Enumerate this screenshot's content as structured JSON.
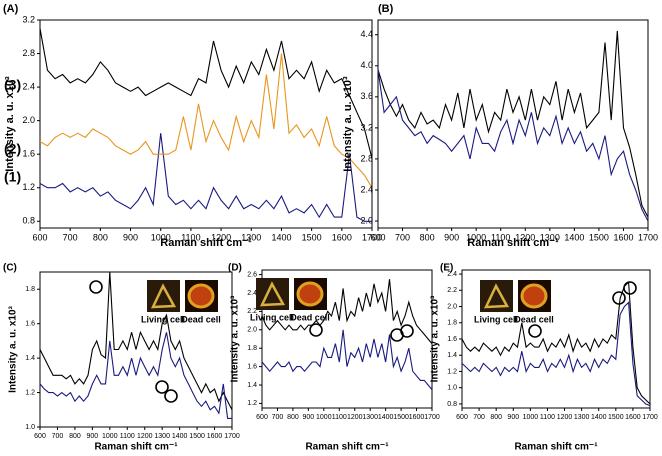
{
  "chart_data": [
    {
      "type": "line",
      "label": "(A)",
      "xlabel": "Raman shift cm⁻¹",
      "ylabel": "Intensity a. u. x10³",
      "x": [
        600,
        625,
        650,
        675,
        700,
        725,
        750,
        775,
        800,
        825,
        850,
        875,
        900,
        925,
        950,
        975,
        1000,
        1025,
        1050,
        1075,
        1100,
        1125,
        1150,
        1175,
        1200,
        1225,
        1250,
        1275,
        1300,
        1325,
        1350,
        1375,
        1400,
        1425,
        1450,
        1475,
        1500,
        1525,
        1550,
        1575,
        1600,
        1625,
        1650,
        1675,
        1700
      ],
      "xlim": [
        600,
        1700
      ],
      "xticks": [
        600,
        700,
        800,
        900,
        1000,
        1100,
        1200,
        1300,
        1400,
        1500,
        1600,
        1700
      ],
      "ylim": [
        0.72,
        3.2
      ],
      "yticks": [
        0.8,
        1.2,
        1.6,
        {
          "value": 2,
          "label": "2.0"
        },
        2.4,
        2.8,
        3.2
      ],
      "series": [
        {
          "name": "(1)",
          "color": "#1a1a80",
          "values": [
            1.25,
            1.2,
            1.2,
            1.25,
            1.15,
            1.2,
            1.15,
            1.2,
            1.1,
            1.15,
            1.05,
            1.0,
            0.95,
            1.05,
            1.2,
            1.0,
            1.85,
            1.1,
            1.0,
            1.05,
            0.95,
            1.05,
            0.95,
            1.2,
            1.05,
            0.95,
            1.1,
            0.95,
            1.0,
            0.95,
            1.05,
            0.95,
            1.1,
            0.9,
            0.95,
            0.9,
            1.0,
            0.85,
            1.0,
            0.85,
            0.85,
            1.6,
            0.85,
            0.8,
            0.8
          ]
        },
        {
          "name": "(2)",
          "color": "#e8961e",
          "values": [
            1.75,
            1.7,
            1.8,
            1.85,
            1.8,
            1.85,
            1.8,
            1.9,
            1.85,
            1.8,
            1.7,
            1.65,
            1.6,
            1.65,
            1.75,
            1.6,
            1.6,
            1.6,
            1.65,
            2.05,
            1.65,
            2.2,
            1.75,
            2.0,
            1.8,
            1.65,
            2.05,
            1.75,
            2.0,
            1.8,
            2.55,
            1.9,
            2.8,
            1.85,
            1.95,
            1.8,
            1.9,
            1.7,
            2.05,
            1.7,
            1.6,
            1.55,
            1.45,
            1.35,
            1.2
          ]
        },
        {
          "name": "(3)",
          "color": "#000000",
          "values": [
            3.1,
            2.6,
            2.5,
            2.55,
            2.45,
            2.5,
            2.45,
            2.55,
            2.7,
            2.6,
            2.45,
            2.4,
            2.35,
            2.4,
            2.3,
            2.35,
            2.4,
            2.45,
            2.4,
            2.35,
            2.3,
            2.5,
            2.45,
            2.95,
            2.6,
            2.4,
            2.65,
            2.45,
            2.7,
            2.55,
            2.85,
            2.6,
            2.95,
            2.5,
            2.6,
            2.5,
            2.7,
            2.35,
            2.6,
            2.45,
            2.5,
            2.3,
            2.1,
            1.9,
            1.55
          ]
        }
      ]
    },
    {
      "type": "line",
      "label": "(B)",
      "xlabel": "Raman shift cm⁻¹",
      "ylabel": "Intensity a. u. x10³",
      "x": [
        600,
        625,
        650,
        675,
        700,
        725,
        750,
        775,
        800,
        825,
        850,
        875,
        900,
        925,
        950,
        975,
        1000,
        1025,
        1050,
        1075,
        1100,
        1125,
        1150,
        1175,
        1200,
        1225,
        1250,
        1275,
        1300,
        1325,
        1350,
        1375,
        1400,
        1425,
        1450,
        1475,
        1500,
        1525,
        1550,
        1575,
        1600,
        1625,
        1650,
        1675,
        1700
      ],
      "xlim": [
        600,
        1700
      ],
      "xticks": [
        600,
        700,
        800,
        900,
        1000,
        1100,
        1200,
        1300,
        1400,
        1500,
        1600,
        1700
      ],
      "ylim": [
        1.91,
        4.59
      ],
      "yticks": [
        {
          "value": 2,
          "label": "2.0"
        },
        2.4,
        2.8,
        3.2,
        3.6,
        {
          "value": 4,
          "label": "4.0"
        },
        4.4
      ],
      "series": [
        {
          "color": "#000000",
          "values": [
            3.95,
            3.7,
            3.5,
            3.35,
            3.5,
            3.3,
            3.2,
            3.4,
            3.25,
            3.3,
            3.2,
            3.5,
            3.3,
            3.65,
            3.2,
            3.7,
            3.3,
            3.5,
            3.15,
            3.4,
            3.3,
            3.7,
            3.4,
            3.6,
            3.3,
            3.7,
            3.3,
            3.6,
            3.5,
            3.8,
            3.3,
            3.7,
            3.4,
            3.65,
            3.2,
            3.3,
            3.4,
            4.3,
            3.3,
            4.45,
            3.2,
            2.95,
            2.6,
            2.2,
            2.05
          ]
        },
        {
          "color": "#1a1a80",
          "values": [
            3.95,
            3.4,
            3.5,
            3.6,
            3.3,
            3.2,
            3.1,
            3.15,
            3.0,
            3.1,
            3.05,
            3.0,
            2.9,
            3.0,
            3.1,
            2.8,
            3.2,
            3.0,
            3.0,
            2.9,
            3.15,
            3.3,
            3.0,
            3.3,
            3.1,
            3.4,
            3.0,
            3.2,
            3.1,
            3.35,
            3.0,
            3.2,
            3.0,
            3.15,
            2.9,
            3.0,
            2.8,
            3.1,
            2.6,
            2.8,
            2.9,
            2.6,
            2.4,
            2.15,
            2.0
          ]
        }
      ]
    },
    {
      "type": "line",
      "label": "(C)",
      "xlabel": "Raman shift cm⁻¹",
      "ylabel": "Intensity a. u. x10³",
      "annotations": [
        "Living cell",
        "Dead cell"
      ],
      "x": [
        600,
        625,
        650,
        675,
        700,
        725,
        750,
        775,
        800,
        825,
        850,
        875,
        900,
        925,
        950,
        975,
        1000,
        1025,
        1050,
        1075,
        1100,
        1125,
        1150,
        1175,
        1200,
        1225,
        1250,
        1275,
        1300,
        1325,
        1350,
        1375,
        1400,
        1425,
        1450,
        1475,
        1500,
        1525,
        1550,
        1575,
        1600,
        1625,
        1650,
        1675,
        1700
      ],
      "xlim": [
        600,
        1700
      ],
      "xticks": [
        600,
        700,
        800,
        900,
        1000,
        1100,
        1200,
        1300,
        1400,
        1500,
        1600,
        1700
      ],
      "ylim": [
        1.0,
        1.9
      ],
      "yticks": [
        {
          "value": 1,
          "label": "1.0"
        },
        1.2,
        1.4,
        1.6,
        1.8
      ],
      "series": [
        {
          "color": "#000000",
          "values": [
            1.45,
            1.4,
            1.35,
            1.3,
            1.3,
            1.3,
            1.28,
            1.3,
            1.25,
            1.28,
            1.25,
            1.3,
            1.45,
            1.5,
            1.42,
            1.4,
            1.9,
            1.45,
            1.45,
            1.5,
            1.45,
            1.55,
            1.45,
            1.55,
            1.5,
            1.45,
            1.5,
            1.45,
            1.6,
            1.65,
            1.5,
            1.45,
            1.5,
            1.4,
            1.35,
            1.3,
            1.25,
            1.2,
            1.25,
            1.2,
            1.22,
            1.15,
            1.2,
            1.15,
            1.1
          ]
        },
        {
          "color": "#1a1a80",
          "values": [
            1.25,
            1.22,
            1.2,
            1.2,
            1.18,
            1.2,
            1.18,
            1.2,
            1.15,
            1.18,
            1.15,
            1.18,
            1.25,
            1.3,
            1.25,
            1.25,
            1.5,
            1.3,
            1.3,
            1.35,
            1.3,
            1.4,
            1.3,
            1.4,
            1.35,
            1.3,
            1.35,
            1.3,
            1.45,
            1.55,
            1.4,
            1.35,
            1.4,
            1.3,
            1.25,
            1.2,
            1.15,
            1.12,
            1.15,
            1.1,
            1.12,
            1.08,
            1.25,
            1.05,
            1.05
          ]
        }
      ]
    },
    {
      "type": "line",
      "label": "(D)",
      "xlabel": "Raman shift cm⁻¹",
      "ylabel": "Intensity a. u. x10³",
      "annotations": [
        "Living cell",
        "Dead cell"
      ],
      "x": [
        600,
        625,
        650,
        675,
        700,
        725,
        750,
        775,
        800,
        825,
        850,
        875,
        900,
        925,
        950,
        975,
        1000,
        1025,
        1050,
        1075,
        1100,
        1125,
        1150,
        1175,
        1200,
        1225,
        1250,
        1275,
        1300,
        1325,
        1350,
        1375,
        1400,
        1425,
        1450,
        1475,
        1500,
        1525,
        1550,
        1575,
        1600,
        1625,
        1650,
        1675,
        1700
      ],
      "xlim": [
        600,
        1700
      ],
      "xticks": [
        600,
        700,
        800,
        900,
        1000,
        1100,
        1200,
        1300,
        1400,
        1500,
        1600,
        1700
      ],
      "ylim": [
        1.15,
        2.65
      ],
      "yticks": [
        1.2,
        1.4,
        1.6,
        1.8,
        {
          "value": 2,
          "label": "2.0"
        },
        2.2,
        2.4,
        2.6
      ],
      "series": [
        {
          "color": "#000000",
          "values": [
            2.15,
            2.05,
            2.0,
            2.05,
            2.1,
            2.05,
            2.0,
            2.05,
            2.0,
            2.0,
            2.05,
            2.0,
            2.05,
            2.05,
            2.1,
            2.05,
            2.1,
            2.2,
            2.15,
            2.3,
            2.1,
            2.45,
            2.1,
            2.2,
            2.15,
            2.35,
            2.2,
            2.4,
            2.25,
            2.5,
            2.3,
            2.4,
            2.2,
            2.55,
            2.1,
            2.2,
            2.05,
            2.15,
            2.3,
            2.15,
            2.05,
            2.0,
            1.95,
            1.9,
            1.85
          ]
        },
        {
          "color": "#1a1a80",
          "values": [
            1.65,
            1.6,
            1.55,
            1.6,
            1.65,
            1.6,
            1.6,
            1.65,
            1.55,
            1.6,
            1.6,
            1.55,
            1.6,
            1.65,
            1.65,
            1.6,
            1.8,
            1.7,
            1.7,
            1.85,
            1.65,
            2.0,
            1.6,
            1.75,
            1.7,
            1.8,
            1.65,
            1.85,
            1.7,
            1.9,
            1.7,
            1.85,
            1.65,
            1.95,
            1.6,
            1.7,
            1.55,
            1.65,
            1.8,
            1.55,
            1.5,
            1.45,
            1.45,
            1.4,
            1.35
          ]
        }
      ]
    },
    {
      "type": "line",
      "label": "(E)",
      "xlabel": "Raman shift cm⁻¹",
      "ylabel": "Intensity a. u. x10³",
      "annotations": [
        "Living cell",
        "Dead cell"
      ],
      "x": [
        600,
        625,
        650,
        675,
        700,
        725,
        750,
        775,
        800,
        825,
        850,
        875,
        900,
        925,
        950,
        975,
        1000,
        1025,
        1050,
        1075,
        1100,
        1125,
        1150,
        1175,
        1200,
        1225,
        1250,
        1275,
        1300,
        1325,
        1350,
        1375,
        1400,
        1425,
        1450,
        1475,
        1500,
        1525,
        1550,
        1575,
        1600,
        1625,
        1650,
        1675,
        1700
      ],
      "xlim": [
        600,
        1700
      ],
      "xticks": [
        600,
        700,
        800,
        900,
        1000,
        1100,
        1200,
        1300,
        1400,
        1500,
        1600,
        1700
      ],
      "ylim": [
        0.75,
        2.45
      ],
      "yticks": [
        0.8,
        {
          "value": 1,
          "label": "1.0"
        },
        1.2,
        1.4,
        1.6,
        1.8,
        {
          "value": 2,
          "label": "2.0"
        },
        2.2,
        2.4
      ],
      "series": [
        {
          "color": "#000000",
          "values": [
            1.6,
            1.5,
            1.45,
            1.5,
            1.45,
            1.55,
            1.5,
            1.45,
            1.5,
            1.4,
            1.5,
            1.45,
            1.55,
            1.5,
            1.8,
            1.5,
            1.55,
            1.5,
            1.5,
            1.6,
            1.45,
            1.55,
            1.5,
            1.6,
            1.5,
            1.65,
            1.45,
            1.6,
            1.5,
            1.55,
            1.45,
            1.6,
            1.5,
            1.6,
            1.55,
            1.65,
            1.6,
            2.1,
            2.25,
            2.3,
            1.5,
            1.0,
            0.9,
            0.85,
            0.8
          ]
        },
        {
          "color": "#1a1a80",
          "values": [
            1.3,
            1.25,
            1.2,
            1.25,
            1.2,
            1.3,
            1.25,
            1.2,
            1.25,
            1.15,
            1.25,
            1.2,
            1.25,
            1.2,
            1.45,
            1.2,
            1.3,
            1.25,
            1.25,
            1.35,
            1.2,
            1.3,
            1.25,
            1.35,
            1.25,
            1.4,
            1.2,
            1.35,
            1.25,
            1.3,
            1.2,
            1.35,
            1.25,
            1.35,
            1.3,
            1.4,
            1.35,
            1.9,
            2.0,
            2.05,
            1.3,
            0.9,
            0.85,
            0.8,
            0.78
          ]
        }
      ]
    }
  ]
}
